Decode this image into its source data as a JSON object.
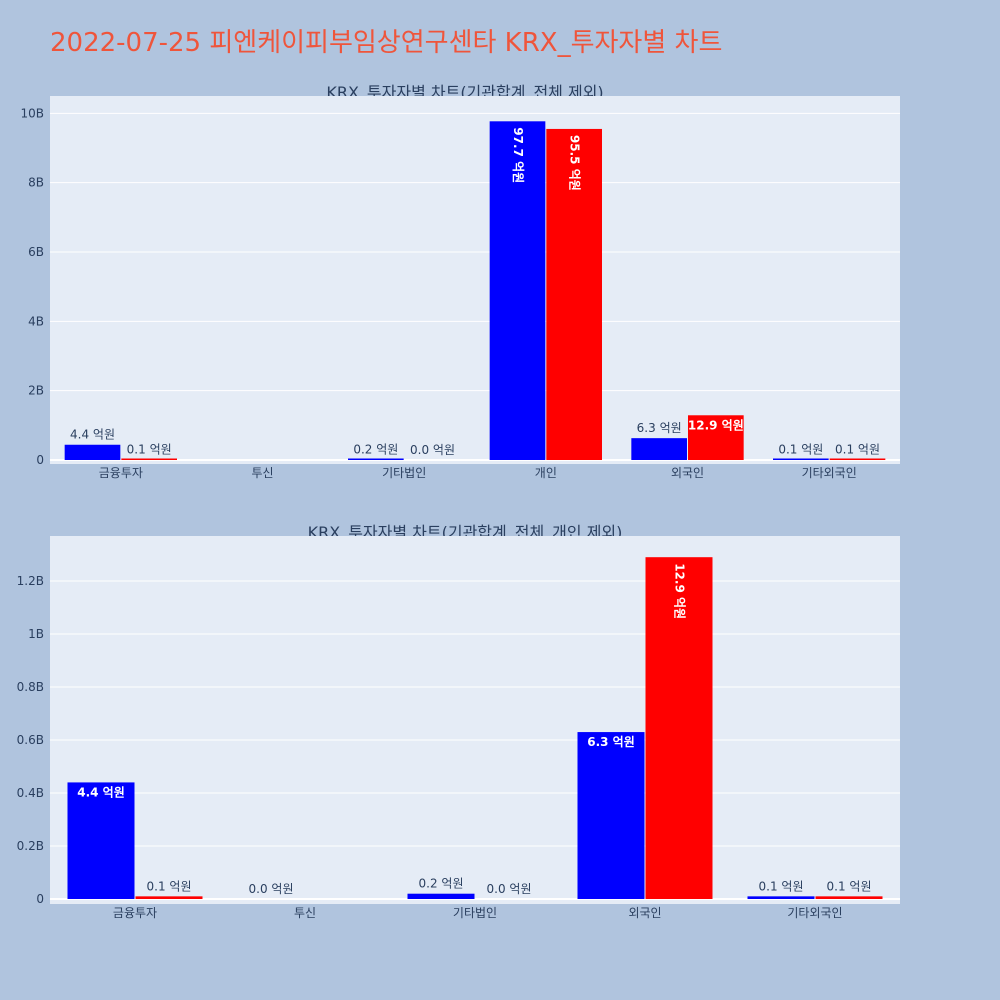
{
  "title": "2022-07-25 피엔케이피부임상연구센타 KRX_투자자별 차트",
  "colors": {
    "buy": "#0000ff",
    "sell": "#ff0000"
  },
  "chart_data": [
    {
      "type": "bar",
      "title": "KRX_투자자별 차트(기관합계_전체 제외)",
      "categories": [
        "금융투자",
        "투신",
        "기타법인",
        "개인",
        "외국인",
        "기타외국인"
      ],
      "series": [
        {
          "values": [
            440000000,
            0,
            20000000,
            9770000000,
            630000000,
            10000000
          ],
          "labels": [
            "4.4 억원",
            "",
            "0.2 억원",
            "97.7 억원",
            "6.3 억원",
            "0.1 억원"
          ]
        },
        {
          "values": [
            10000000,
            0,
            0,
            9550000000,
            1290000000,
            10000000
          ],
          "labels": [
            "0.1 억원",
            "",
            "0.0 억원",
            "95.5 억원",
            "12.9 억원",
            "0.1 억원"
          ]
        }
      ],
      "ylim": [
        0,
        10500000000
      ],
      "yticks": [
        0,
        2000000000,
        4000000000,
        6000000000,
        8000000000,
        10000000000
      ],
      "ytick_labels": [
        "0",
        "2B",
        "4B",
        "6B",
        "8B",
        "10B"
      ]
    },
    {
      "type": "bar",
      "title": "KRX_투자자별 차트(기관합계_전체_개인 제외)",
      "categories": [
        "금융투자",
        "투신",
        "기타법인",
        "외국인",
        "기타외국인"
      ],
      "series": [
        {
          "values": [
            440000000,
            0,
            20000000,
            630000000,
            10000000
          ],
          "labels": [
            "4.4 억원",
            "0.0 억원",
            "0.2 억원",
            "6.3 억원",
            "0.1 억원"
          ]
        },
        {
          "values": [
            10000000,
            0,
            0,
            1290000000,
            10000000
          ],
          "labels": [
            "0.1 억원",
            "",
            "0.0 억원",
            "12.9 억원",
            "0.1 억원"
          ]
        }
      ],
      "ylim": [
        0,
        1370000000
      ],
      "yticks": [
        0,
        200000000,
        400000000,
        600000000,
        800000000,
        1000000000,
        1200000000
      ],
      "ytick_labels": [
        "0",
        "0.2B",
        "0.4B",
        "0.6B",
        "0.8B",
        "1B",
        "1.2B"
      ]
    }
  ]
}
